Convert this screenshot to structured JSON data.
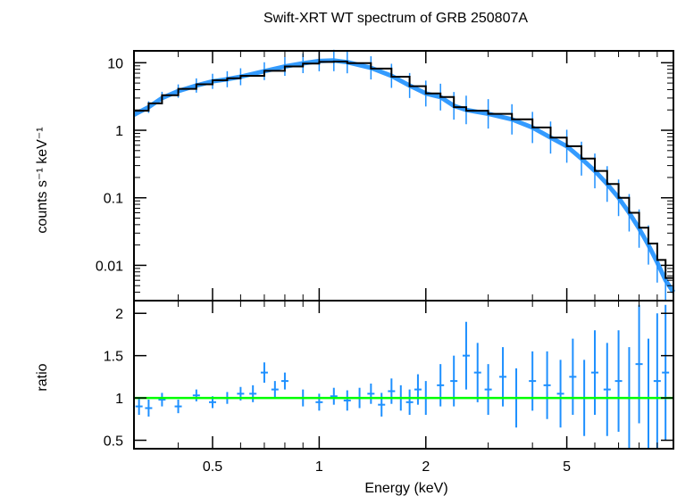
{
  "chart_data": [
    {
      "type": "scatter",
      "title": "Swift-XRT WT spectrum of GRB 250807A",
      "ylabel": "counts s⁻¹ keV⁻¹",
      "xscale": "log",
      "yscale": "log",
      "xlim": [
        0.3,
        10
      ],
      "ylim": [
        0.003,
        15
      ],
      "yticks": [
        {
          "value": 10,
          "label": "10"
        },
        {
          "value": 1,
          "label": "1"
        },
        {
          "value": 0.1,
          "label": "0.1"
        },
        {
          "value": 0.01,
          "label": "0.01"
        }
      ],
      "series": [
        {
          "role": "data",
          "color": "#1e90ff",
          "x": [
            0.3,
            0.33,
            0.36,
            0.4,
            0.45,
            0.5,
            0.55,
            0.6,
            0.7,
            0.8,
            0.9,
            1.0,
            1.1,
            1.2,
            1.4,
            1.6,
            1.8,
            2.0,
            2.2,
            2.4,
            2.6,
            3.0,
            3.5,
            4.0,
            4.5,
            5.0,
            5.5,
            6.0,
            6.5,
            7.0,
            7.5,
            8.0,
            8.5,
            9.0,
            9.5,
            10.0
          ],
          "y": [
            1.7,
            2.2,
            3.0,
            3.8,
            4.6,
            5.3,
            5.7,
            6.2,
            7.5,
            8.8,
            9.8,
            10.6,
            10.8,
            10.2,
            8.4,
            6.4,
            4.6,
            3.5,
            3.1,
            2.3,
            2.0,
            1.75,
            1.45,
            1.1,
            0.78,
            0.58,
            0.38,
            0.25,
            0.16,
            0.1,
            0.06,
            0.035,
            0.02,
            0.011,
            0.006,
            0.004
          ]
        },
        {
          "role": "model",
          "color": "#000000",
          "x": [
            0.3,
            0.33,
            0.36,
            0.4,
            0.45,
            0.5,
            0.55,
            0.6,
            0.7,
            0.8,
            0.9,
            1.0,
            1.1,
            1.2,
            1.4,
            1.6,
            1.8,
            2.0,
            2.2,
            2.4,
            2.6,
            3.0,
            3.5,
            4.0,
            4.5,
            5.0,
            5.5,
            6.0,
            6.5,
            7.0,
            7.5,
            8.0,
            8.5,
            9.0,
            9.5,
            10.0
          ],
          "y": [
            1.95,
            2.5,
            3.3,
            4.1,
            4.8,
            5.5,
            5.9,
            6.4,
            7.6,
            8.8,
            9.7,
            10.3,
            10.4,
            9.9,
            8.2,
            6.2,
            4.5,
            3.5,
            3.1,
            2.2,
            1.95,
            1.75,
            1.45,
            1.1,
            0.78,
            0.58,
            0.38,
            0.25,
            0.16,
            0.1,
            0.06,
            0.036,
            0.021,
            0.012,
            0.0065,
            0.004
          ]
        }
      ]
    },
    {
      "type": "scatter",
      "xlabel": "Energy (keV)",
      "ylabel": "ratio",
      "xscale": "log",
      "xlim": [
        0.3,
        10
      ],
      "ylim": [
        0.4,
        2.15
      ],
      "xticks": [
        {
          "value": 0.5,
          "label": "0.5"
        },
        {
          "value": 1,
          "label": "1"
        },
        {
          "value": 2,
          "label": "2"
        },
        {
          "value": 5,
          "label": "5"
        }
      ],
      "yticks": [
        {
          "value": 0.5,
          "label": "0.5"
        },
        {
          "value": 1,
          "label": "1"
        },
        {
          "value": 1.5,
          "label": "1.5"
        },
        {
          "value": 2,
          "label": "2"
        }
      ],
      "reference_line": {
        "y": 1.0,
        "color": "#00ff00"
      },
      "series": [
        {
          "role": "data",
          "color": "#1e90ff",
          "x": [
            0.31,
            0.33,
            0.36,
            0.4,
            0.45,
            0.5,
            0.55,
            0.6,
            0.65,
            0.7,
            0.75,
            0.8,
            0.9,
            1.0,
            1.1,
            1.2,
            1.3,
            1.4,
            1.5,
            1.6,
            1.7,
            1.8,
            1.9,
            2.0,
            2.2,
            2.4,
            2.6,
            2.8,
            3.0,
            3.3,
            3.6,
            4.0,
            4.4,
            4.8,
            5.2,
            5.6,
            6.0,
            6.5,
            7.0,
            7.5,
            8.0,
            8.5,
            9.0,
            9.5
          ],
          "y": [
            0.9,
            0.88,
            0.98,
            0.9,
            1.03,
            0.95,
            1.0,
            1.05,
            1.05,
            1.3,
            1.1,
            1.2,
            1.0,
            0.95,
            1.02,
            0.97,
            1.0,
            1.05,
            0.92,
            1.08,
            1.0,
            0.95,
            1.1,
            1.0,
            1.15,
            1.2,
            1.5,
            1.3,
            1.1,
            1.25,
            1.0,
            1.2,
            1.15,
            1.05,
            1.25,
            1.0,
            1.3,
            1.1,
            1.2,
            1.0,
            1.4,
            1.0,
            1.2,
            1.3
          ],
          "err": [
            0.1,
            0.1,
            0.08,
            0.08,
            0.07,
            0.07,
            0.07,
            0.08,
            0.1,
            0.12,
            0.1,
            0.1,
            0.1,
            0.1,
            0.1,
            0.12,
            0.12,
            0.12,
            0.14,
            0.15,
            0.15,
            0.15,
            0.18,
            0.2,
            0.25,
            0.3,
            0.4,
            0.35,
            0.3,
            0.35,
            0.35,
            0.35,
            0.4,
            0.4,
            0.45,
            0.45,
            0.5,
            0.55,
            0.6,
            0.6,
            0.7,
            0.7,
            0.8,
            0.8
          ]
        }
      ]
    }
  ]
}
